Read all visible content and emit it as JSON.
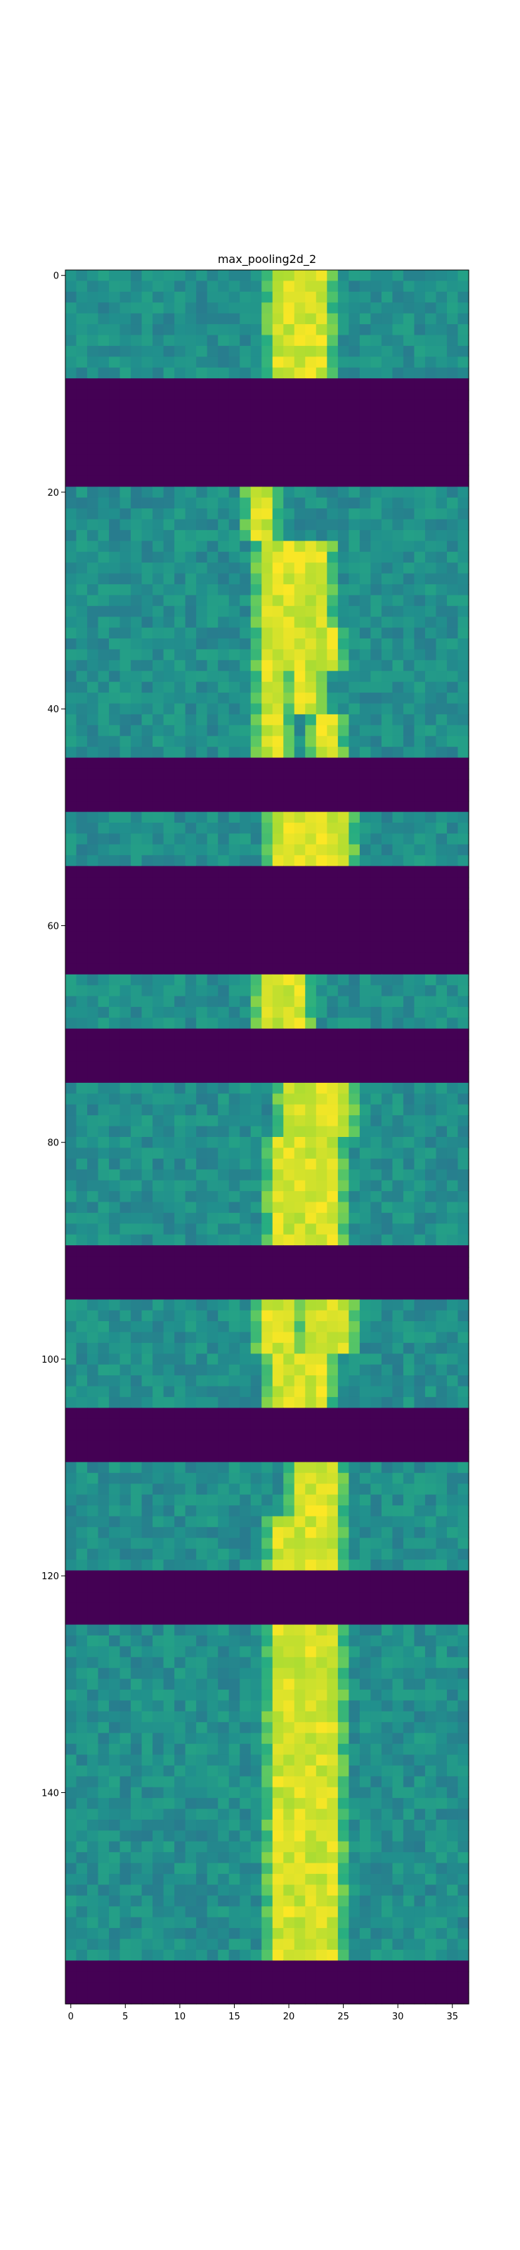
{
  "chart_data": {
    "type": "heatmap",
    "title": "max_pooling2d_2",
    "xlabel": "",
    "ylabel": "",
    "n_cols": 37,
    "n_rows": 160,
    "xlim": [
      -0.5,
      36.5
    ],
    "ylim": [
      159.5,
      -0.5
    ],
    "xticks": [
      0,
      5,
      10,
      15,
      20,
      25,
      30,
      35
    ],
    "yticks": [
      0,
      20,
      40,
      60,
      80,
      100,
      120,
      140
    ],
    "colormap": "viridis",
    "value_range": [
      0,
      1
    ],
    "grid": false,
    "legend": "none",
    "background_level": 0.5,
    "empty_level": 0.0,
    "empty_row_ranges": [
      [
        10,
        19
      ],
      [
        45,
        49
      ],
      [
        55,
        64
      ],
      [
        70,
        74
      ],
      [
        90,
        94
      ],
      [
        105,
        109
      ],
      [
        120,
        124
      ],
      [
        156,
        159
      ]
    ],
    "bright_stripes": [
      {
        "rows": [
          0,
          9
        ],
        "cols": [
          [
            19,
            23
          ]
        ]
      },
      {
        "rows": [
          20,
          24
        ],
        "cols": [
          [
            17,
            18
          ]
        ]
      },
      {
        "rows": [
          25,
          32
        ],
        "cols": [
          [
            18,
            23
          ]
        ]
      },
      {
        "rows": [
          33,
          36
        ],
        "cols": [
          [
            18,
            24
          ]
        ]
      },
      {
        "rows": [
          37,
          40
        ],
        "cols": [
          [
            18,
            19
          ],
          [
            21,
            22
          ]
        ]
      },
      {
        "rows": [
          41,
          44
        ],
        "cols": [
          [
            18,
            19
          ],
          [
            23,
            24
          ]
        ]
      },
      {
        "rows": [
          50,
          54
        ],
        "cols": [
          [
            19,
            25
          ]
        ]
      },
      {
        "rows": [
          65,
          69
        ],
        "cols": [
          [
            18,
            21
          ]
        ]
      },
      {
        "rows": [
          75,
          79
        ],
        "cols": [
          [
            20,
            25
          ]
        ]
      },
      {
        "rows": [
          80,
          89
        ],
        "cols": [
          [
            19,
            24
          ]
        ]
      },
      {
        "rows": [
          95,
          99
        ],
        "cols": [
          [
            18,
            20
          ],
          [
            22,
            25
          ]
        ]
      },
      {
        "rows": [
          100,
          104
        ],
        "cols": [
          [
            19,
            23
          ]
        ]
      },
      {
        "rows": [
          110,
          114
        ],
        "cols": [
          [
            21,
            24
          ]
        ]
      },
      {
        "rows": [
          115,
          119
        ],
        "cols": [
          [
            19,
            24
          ]
        ]
      },
      {
        "rows": [
          125,
          155
        ],
        "cols": [
          [
            19,
            24
          ]
        ]
      }
    ]
  }
}
